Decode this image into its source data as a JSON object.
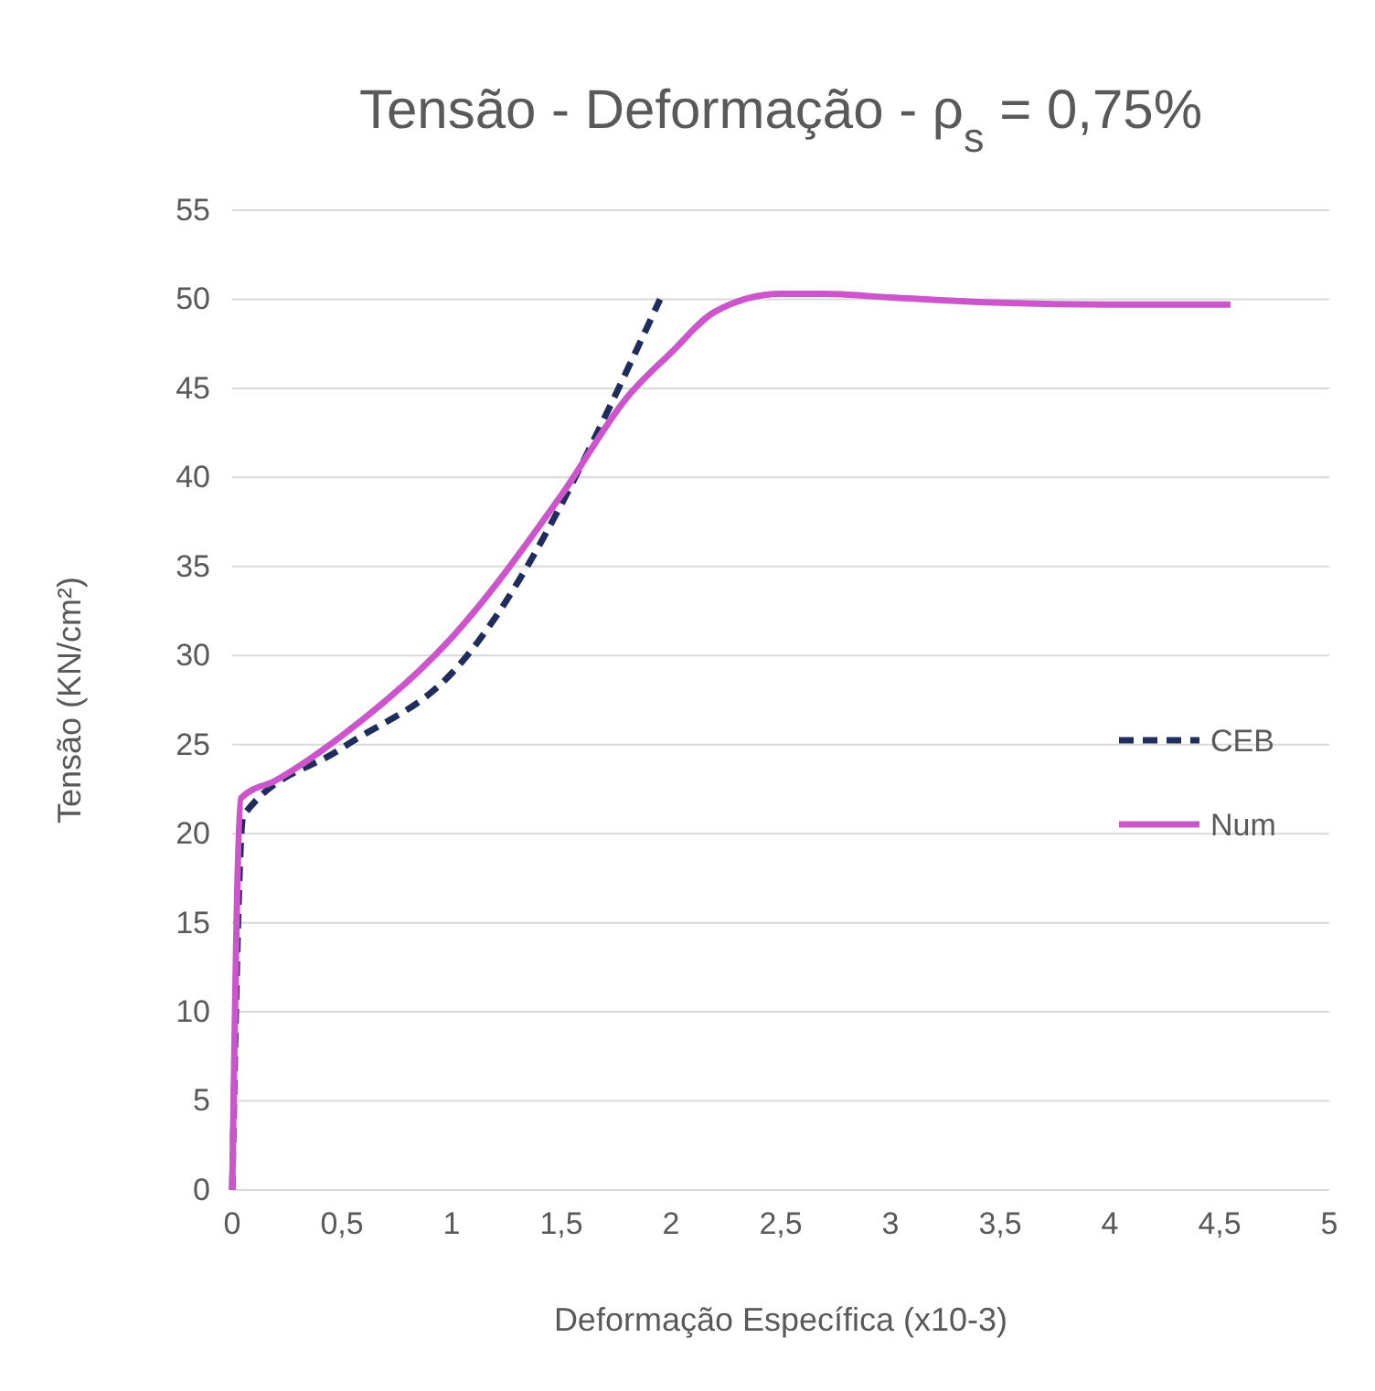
{
  "chart_data": {
    "type": "line",
    "title": "Tensão - Deformação - ρ$_{s}$ = 0,75%",
    "xlabel": "Deformação Específica (x10-3)",
    "ylabel": "Tensão  (KN/cm²)",
    "xlim": [
      0,
      5
    ],
    "xticks": [
      0,
      {
        "value": 0.5,
        "label": "0,5"
      },
      1,
      {
        "value": 1.5,
        "label": "1,5"
      },
      2,
      {
        "value": 2.5,
        "label": "2,5"
      },
      3,
      {
        "value": 3.5,
        "label": "3,5"
      },
      4,
      {
        "value": 4.5,
        "label": "4,5"
      },
      5
    ],
    "ylim": [
      0,
      55
    ],
    "yticks": [
      0,
      5,
      10,
      15,
      20,
      25,
      30,
      35,
      40,
      45,
      50,
      55
    ],
    "grid": "y",
    "legend": "right",
    "series": [
      {
        "name": "CEB",
        "color": "#1f2d5c",
        "line_style": "dashed",
        "x": [
          0,
          0.05,
          0.5,
          1,
          1.95
        ],
        "values": [
          0,
          21,
          24.8,
          29,
          50
        ]
      },
      {
        "name": "Num",
        "color": "#cc55cc",
        "line_style": "solid",
        "x": [
          0,
          0.04,
          0.2,
          0.5,
          1,
          1.5,
          1.8,
          2,
          2.2,
          2.5,
          2.7,
          3,
          3.5,
          4,
          4.55
        ],
        "values": [
          0,
          22,
          23,
          25.5,
          31,
          39,
          44.5,
          47,
          49.3,
          50.3,
          50.3,
          50.1,
          49.8,
          49.7,
          49.7
        ]
      }
    ]
  }
}
